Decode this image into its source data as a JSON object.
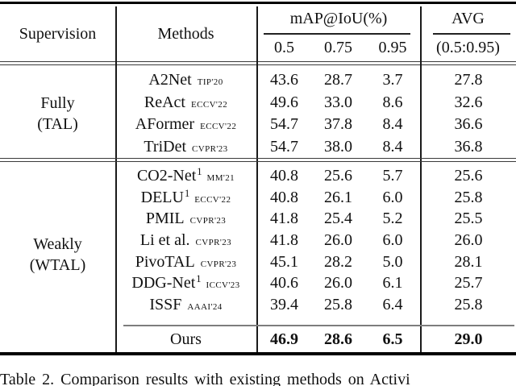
{
  "table": {
    "header": {
      "supervision": "Supervision",
      "methods": "Methods",
      "map_group": "mAP@IoU(%)",
      "avg_group": "AVG",
      "iou_05": "0.5",
      "iou_075": "0.75",
      "iou_095": "0.95",
      "avg_range": "(0.5:0.95)"
    },
    "groups": [
      {
        "name_line1": "Fully",
        "name_line2": "(TAL)",
        "rows": [
          {
            "method": "A2Net",
            "sup": "",
            "venue": "TIP'20",
            "v05": "43.6",
            "v075": "28.7",
            "v095": "3.7",
            "avg": "27.8"
          },
          {
            "method": "ReAct",
            "sup": "",
            "venue": "ECCV'22",
            "v05": "49.6",
            "v075": "33.0",
            "v095": "8.6",
            "avg": "32.6"
          },
          {
            "method": "AFormer",
            "sup": "",
            "venue": "ECCV'22",
            "v05": "54.7",
            "v075": "37.8",
            "v095": "8.4",
            "avg": "36.6"
          },
          {
            "method": "TriDet",
            "sup": "",
            "venue": "CVPR'23",
            "v05": "54.7",
            "v075": "38.0",
            "v095": "8.4",
            "avg": "36.8"
          }
        ]
      },
      {
        "name_line1": "Weakly",
        "name_line2": "(WTAL)",
        "rows": [
          {
            "method": "CO2-Net",
            "sup": "1",
            "venue": "MM'21",
            "v05": "40.8",
            "v075": "25.6",
            "v095": "5.7",
            "avg": "25.6"
          },
          {
            "method": "DELU",
            "sup": "1",
            "venue": "ECCV'22",
            "v05": "40.8",
            "v075": "26.1",
            "v095": "6.0",
            "avg": "25.8"
          },
          {
            "method": "PMIL",
            "sup": "",
            "venue": "CVPR'23",
            "v05": "41.8",
            "v075": "25.4",
            "v095": "5.2",
            "avg": "25.5"
          },
          {
            "method": "Li et al.",
            "sup": "",
            "venue": "CVPR'23",
            "v05": "41.8",
            "v075": "26.0",
            "v095": "6.0",
            "avg": "26.0"
          },
          {
            "method": "PivoTAL",
            "sup": "",
            "venue": "CVPR'23",
            "v05": "45.1",
            "v075": "28.2",
            "v095": "5.0",
            "avg": "28.1"
          },
          {
            "method": "DDG-Net",
            "sup": "1",
            "venue": "ICCV'23",
            "v05": "40.6",
            "v075": "26.0",
            "v095": "6.1",
            "avg": "25.7"
          },
          {
            "method": "ISSF",
            "sup": "",
            "venue": "AAAI'24",
            "v05": "39.4",
            "v075": "25.8",
            "v095": "6.4",
            "avg": "25.8"
          }
        ]
      }
    ],
    "ours": {
      "method": "Ours",
      "v05": "46.9",
      "v075": "28.6",
      "v095": "6.5",
      "avg": "29.0"
    }
  },
  "caption": "Table 2.  Comparison results with existing methods on Activi"
}
